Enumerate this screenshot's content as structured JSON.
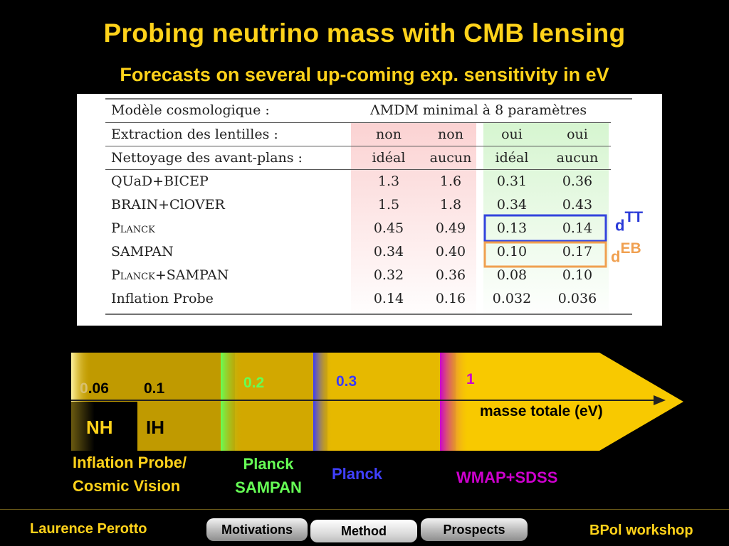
{
  "slide": {
    "title": "Probing neutrino mass with CMB lensing",
    "subtitle": "Forecasts on several up-coming exp. sensitivity in eV"
  },
  "table": {
    "header": {
      "model_label": "Modèle cosmologique :",
      "model_value": "ΛMDM minimal à 8 paramètres",
      "extraction_label": "Extraction des lentilles :",
      "extraction_values": [
        "non",
        "non",
        "oui",
        "oui"
      ],
      "cleaning_label": "Nettoyage des avant-plans :",
      "cleaning_values": [
        "idéal",
        "aucun",
        "idéal",
        "aucun"
      ]
    },
    "rows": [
      {
        "name": "QUaD+BICEP",
        "values": [
          "1.3",
          "1.6",
          "0.31",
          "0.36"
        ]
      },
      {
        "name": "BRAIN+ClOVER",
        "values": [
          "1.5",
          "1.8",
          "0.34",
          "0.43"
        ]
      },
      {
        "name": "Planck",
        "values": [
          "0.45",
          "0.49",
          "0.13",
          "0.14"
        ]
      },
      {
        "name": "SAMPAN",
        "values": [
          "0.34",
          "0.40",
          "0.10",
          "0.17"
        ]
      },
      {
        "name": "Planck+SAMPAN",
        "values": [
          "0.32",
          "0.36",
          "0.08",
          "0.10"
        ]
      },
      {
        "name": "Inflation Probe",
        "values": [
          "0.14",
          "0.16",
          "0.032",
          "0.036"
        ]
      }
    ],
    "estimators": {
      "tt": {
        "base": "d",
        "sup": "TT"
      },
      "eb": {
        "base": "d",
        "sup": "EB"
      }
    }
  },
  "scale": {
    "axis_label": "masse totale (eV)",
    "ticks": [
      "0.06",
      "0.1",
      "0.2",
      "0.3",
      "1"
    ],
    "hierarchies": [
      "NH",
      "IH"
    ],
    "experiments": {
      "inflation_line1": "Inflation Probe/",
      "inflation_line2": "Cosmic Vision",
      "planck_sampan_line1": "Planck",
      "planck_sampan_line2": "SAMPAN",
      "planck": "Planck",
      "wmap": "WMAP+SDSS"
    }
  },
  "footer": {
    "author": "Laurence Perotto",
    "workshop": "BPol workshop",
    "nav": [
      "Motivations",
      "Method",
      "Prospects"
    ]
  },
  "colors": {
    "title": "#ffd21a",
    "nh_ih_green": "#88ff66",
    "planck_blue": "#4040ff",
    "wmap_magenta": "#cc00cc",
    "tt_box": "#3344dd",
    "eb_box": "#f0a050"
  }
}
